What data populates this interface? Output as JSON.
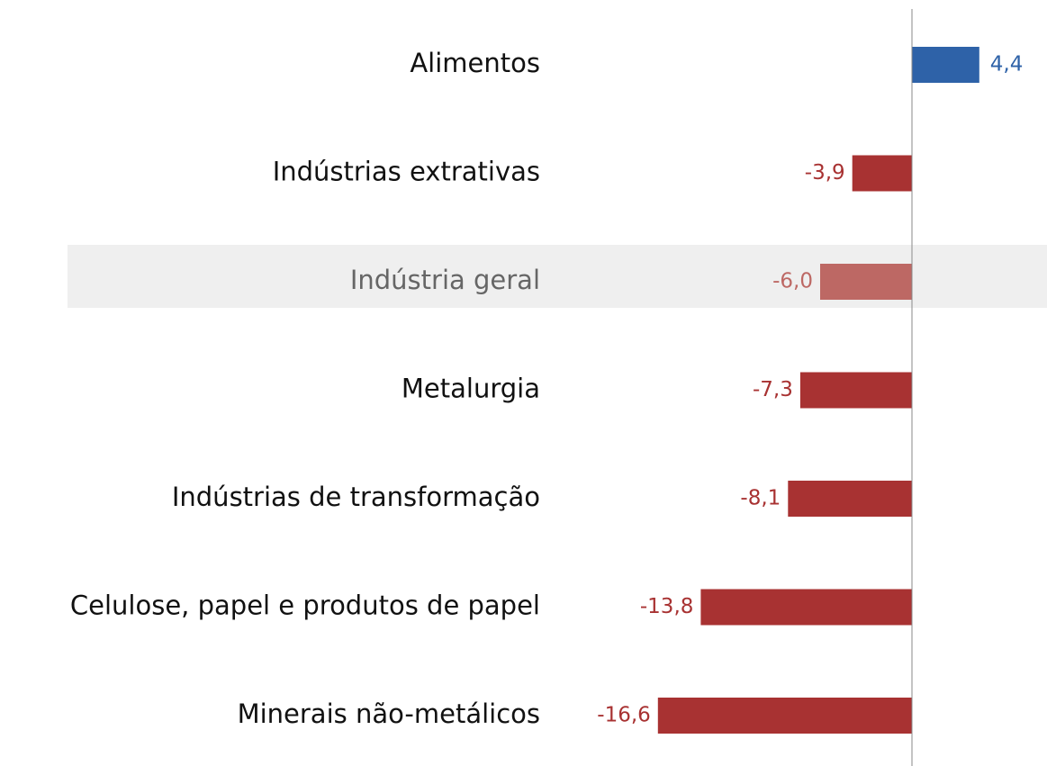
{
  "chart_data": {
    "type": "barh",
    "categories": [
      "Alimentos",
      "Indústrias extrativas",
      "Indústria geral",
      "Metalurgia",
      "Indústrias de transformação",
      "Celulose, papel e produtos de papel",
      "Minerais não-metálicos"
    ],
    "values": [
      4.4,
      -3.9,
      -6.0,
      -7.3,
      -8.1,
      -13.8,
      -16.6
    ],
    "value_labels": [
      "4,4",
      "-3,9",
      "-6,0",
      "-7,3",
      "-8,1",
      "-13,8",
      "-16,6"
    ],
    "colors": [
      "#2e62a8",
      "#a83232",
      "#bd6864",
      "#a83232",
      "#a83232",
      "#a83232",
      "#a83232"
    ],
    "xlim": [
      -20,
      6
    ]
  }
}
